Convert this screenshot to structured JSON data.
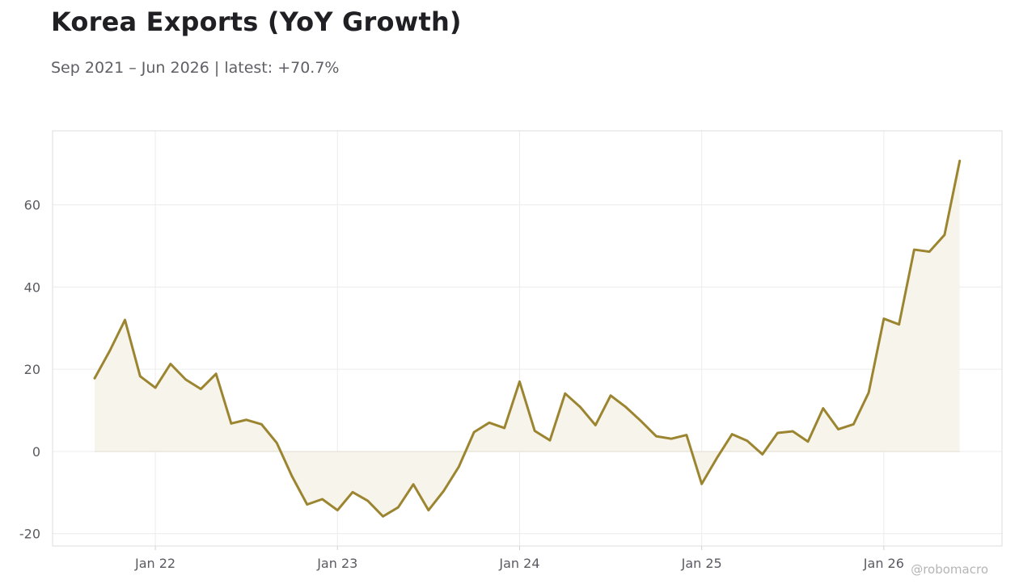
{
  "header": {
    "title": "Korea Exports (YoY Growth)",
    "subtitle": "Sep 2021 – Jun 2026 | latest: +70.7%"
  },
  "watermark": "@robomacro",
  "colors": {
    "line": "#9c8530",
    "fill": "#f7f4ec",
    "grid": "#ececec",
    "frame": "#dddddd",
    "zero_line": "#e2ddd0"
  },
  "chart_data": {
    "type": "area",
    "title": "Korea Exports (YoY Growth)",
    "subtitle": "Sep 2021 – Jun 2026 | latest: +70.7%",
    "xlabel": "",
    "ylabel": "",
    "ylim": [
      -23,
      78
    ],
    "yticks": [
      -20,
      0,
      20,
      40,
      60
    ],
    "x_tick_labels": [
      "Jan 22",
      "Jan 23",
      "Jan 24",
      "Jan 25",
      "Jan 26"
    ],
    "grid": true,
    "x": [
      "2021-09",
      "2021-10",
      "2021-11",
      "2021-12",
      "2022-01",
      "2022-02",
      "2022-03",
      "2022-04",
      "2022-05",
      "2022-06",
      "2022-07",
      "2022-08",
      "2022-09",
      "2022-10",
      "2022-11",
      "2022-12",
      "2023-01",
      "2023-02",
      "2023-03",
      "2023-04",
      "2023-05",
      "2023-06",
      "2023-07",
      "2023-08",
      "2023-09",
      "2023-10",
      "2023-11",
      "2023-12",
      "2024-01",
      "2024-02",
      "2024-03",
      "2024-04",
      "2024-05",
      "2024-06",
      "2024-07",
      "2024-08",
      "2024-09",
      "2024-10",
      "2024-11",
      "2024-12",
      "2025-01",
      "2025-02",
      "2025-03",
      "2025-04",
      "2025-05",
      "2025-06",
      "2025-07",
      "2025-08",
      "2025-09",
      "2025-10",
      "2025-11",
      "2025-12",
      "2026-01",
      "2026-02",
      "2026-03",
      "2026-04",
      "2026-05",
      "2026-06"
    ],
    "series": [
      {
        "name": "",
        "values": [
          17.8,
          24.5,
          32.0,
          18.3,
          15.5,
          21.3,
          17.5,
          15.2,
          18.9,
          6.8,
          7.7,
          6.6,
          2.1,
          -6.0,
          -12.9,
          -11.6,
          -14.3,
          -9.9,
          -12.0,
          -15.8,
          -13.6,
          -8.0,
          -14.3,
          -9.6,
          -3.7,
          4.7,
          7.0,
          5.7,
          17.0,
          5.0,
          2.7,
          14.1,
          10.8,
          6.4,
          13.6,
          10.8,
          7.4,
          3.7,
          3.1,
          4.0,
          -7.9,
          -1.6,
          4.2,
          2.6,
          -0.7,
          4.5,
          4.9,
          2.4,
          10.5,
          5.4,
          6.6,
          14.3,
          32.3,
          30.9,
          49.1,
          48.6,
          52.7,
          70.7
        ]
      }
    ]
  }
}
